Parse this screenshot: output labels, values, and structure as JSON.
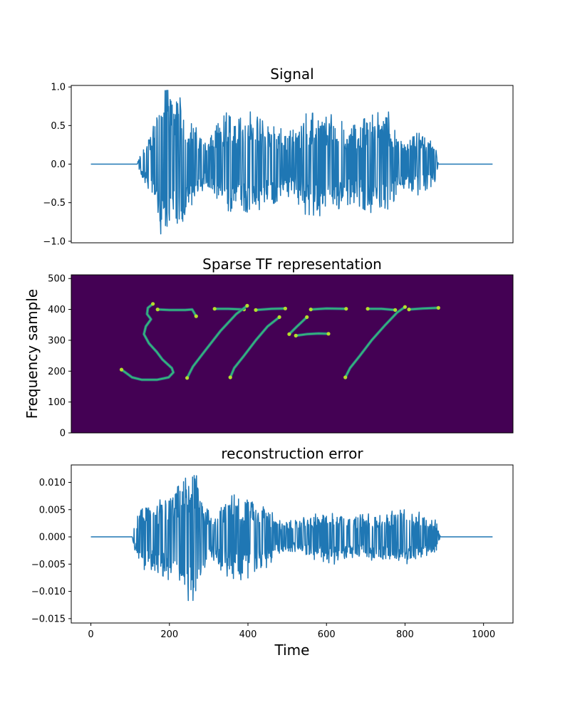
{
  "chart_data": [
    {
      "type": "line",
      "title": "Signal",
      "xlabel": "",
      "ylabel": "",
      "xlim": [
        -50,
        1075
      ],
      "ylim": [
        -1.02,
        1.02
      ],
      "yticks": [
        -1.0,
        -0.5,
        0.0,
        0.5,
        1.0
      ],
      "ytick_labels": [
        "−1.0",
        "−0.5",
        "0.0",
        "0.5",
        "1.0"
      ],
      "xticks_visible": false,
      "line_color": "#1f77b4",
      "envelope": [
        {
          "x": 0,
          "amp": 0.0
        },
        {
          "x": 118,
          "amp": 0.0
        },
        {
          "x": 125,
          "amp": 0.12
        },
        {
          "x": 140,
          "amp": 0.3
        },
        {
          "x": 160,
          "amp": 0.5
        },
        {
          "x": 180,
          "amp": 0.95
        },
        {
          "x": 205,
          "amp": 0.96
        },
        {
          "x": 240,
          "amp": 0.8
        },
        {
          "x": 270,
          "amp": 0.45
        },
        {
          "x": 290,
          "amp": 0.3
        },
        {
          "x": 320,
          "amp": 0.5
        },
        {
          "x": 355,
          "amp": 0.73
        },
        {
          "x": 400,
          "amp": 0.7
        },
        {
          "x": 440,
          "amp": 0.55
        },
        {
          "x": 470,
          "amp": 0.6
        },
        {
          "x": 490,
          "amp": 0.4
        },
        {
          "x": 520,
          "amp": 0.45
        },
        {
          "x": 545,
          "amp": 0.65
        },
        {
          "x": 600,
          "amp": 0.68
        },
        {
          "x": 640,
          "amp": 0.55
        },
        {
          "x": 670,
          "amp": 0.5
        },
        {
          "x": 700,
          "amp": 0.6
        },
        {
          "x": 755,
          "amp": 0.72
        },
        {
          "x": 780,
          "amp": 0.35
        },
        {
          "x": 810,
          "amp": 0.4
        },
        {
          "x": 850,
          "amp": 0.4
        },
        {
          "x": 880,
          "amp": 0.2
        },
        {
          "x": 885,
          "amp": 0.0
        },
        {
          "x": 1023,
          "amp": 0.0
        }
      ]
    },
    {
      "type": "heatmap",
      "title": "Sparse TF representation",
      "xlabel": "",
      "ylabel": "Frequency sample",
      "xlim": [
        0,
        1125
      ],
      "ylim": [
        0,
        512
      ],
      "yticks": [
        0,
        100,
        200,
        300,
        400,
        500
      ],
      "ytick_labels": [
        "0",
        "100",
        "200",
        "300",
        "400",
        "500"
      ],
      "xticks_visible": false,
      "background_color": "#440154",
      "text_shown_by_energy": "STFT",
      "strokes": [
        [
          [
            208,
            418
          ],
          [
            195,
            405
          ],
          [
            193,
            385
          ],
          [
            203,
            368
          ],
          [
            190,
            345
          ],
          [
            185,
            320
          ],
          [
            198,
            290
          ],
          [
            218,
            262
          ],
          [
            232,
            238
          ],
          [
            256,
            210
          ],
          [
            260,
            196
          ],
          [
            248,
            180
          ],
          [
            218,
            172
          ],
          [
            180,
            172
          ],
          [
            155,
            180
          ],
          [
            142,
            192
          ],
          [
            128,
            205
          ]
        ],
        [
          [
            220,
            400
          ],
          [
            250,
            398
          ],
          [
            290,
            398
          ],
          [
            308,
            400
          ],
          [
            318,
            378
          ]
        ],
        [
          [
            365,
            402
          ],
          [
            400,
            402
          ],
          [
            440,
            400
          ]
        ],
        [
          [
            448,
            412
          ],
          [
            420,
            385
          ],
          [
            380,
            330
          ],
          [
            340,
            265
          ],
          [
            310,
            215
          ],
          [
            295,
            178
          ]
        ],
        [
          [
            470,
            398
          ],
          [
            510,
            402
          ],
          [
            545,
            403
          ]
        ],
        [
          [
            530,
            375
          ],
          [
            500,
            345
          ],
          [
            470,
            300
          ],
          [
            440,
            250
          ],
          [
            415,
            210
          ],
          [
            405,
            180
          ]
        ],
        [
          [
            610,
            400
          ],
          [
            650,
            403
          ],
          [
            700,
            402
          ]
        ],
        [
          [
            600,
            375
          ],
          [
            575,
            345
          ],
          [
            555,
            320
          ]
        ],
        [
          [
            572,
            315
          ],
          [
            600,
            320
          ],
          [
            630,
            322
          ],
          [
            655,
            321
          ]
        ],
        [
          [
            755,
            402
          ],
          [
            790,
            402
          ],
          [
            825,
            398
          ]
        ],
        [
          [
            850,
            408
          ],
          [
            830,
            390
          ],
          [
            800,
            350
          ],
          [
            765,
            300
          ],
          [
            735,
            250
          ],
          [
            710,
            210
          ],
          [
            698,
            180
          ]
        ],
        [
          [
            860,
            400
          ],
          [
            895,
            403
          ],
          [
            935,
            405
          ]
        ]
      ]
    },
    {
      "type": "line",
      "title": "reconstruction error",
      "xlabel": "Time",
      "ylabel": "",
      "xlim": [
        -50,
        1075
      ],
      "ylim": [
        -0.0158,
        0.0132
      ],
      "xticks": [
        0,
        200,
        400,
        600,
        800,
        1000
      ],
      "xtick_labels": [
        "0",
        "200",
        "400",
        "600",
        "800",
        "1000"
      ],
      "yticks": [
        -0.015,
        -0.01,
        -0.005,
        0.0,
        0.005,
        0.01
      ],
      "ytick_labels": [
        "−0.015",
        "−0.010",
        "−0.005",
        "0.000",
        "0.005",
        "0.010"
      ],
      "line_color": "#1f77b4",
      "envelope": [
        {
          "x": 0,
          "amp": 0.0
        },
        {
          "x": 105,
          "amp": 0.0
        },
        {
          "x": 110,
          "amp": 0.002
        },
        {
          "x": 130,
          "amp": 0.006
        },
        {
          "x": 160,
          "amp": 0.006
        },
        {
          "x": 200,
          "amp": 0.008
        },
        {
          "x": 235,
          "amp": 0.01
        },
        {
          "x": 262,
          "amp": 0.0135
        },
        {
          "x": 285,
          "amp": 0.006
        },
        {
          "x": 310,
          "amp": 0.004
        },
        {
          "x": 340,
          "amp": 0.007
        },
        {
          "x": 375,
          "amp": 0.008
        },
        {
          "x": 430,
          "amp": 0.007
        },
        {
          "x": 480,
          "amp": 0.003
        },
        {
          "x": 520,
          "amp": 0.003
        },
        {
          "x": 560,
          "amp": 0.004
        },
        {
          "x": 620,
          "amp": 0.005
        },
        {
          "x": 680,
          "amp": 0.004
        },
        {
          "x": 740,
          "amp": 0.0045
        },
        {
          "x": 800,
          "amp": 0.005
        },
        {
          "x": 840,
          "amp": 0.0045
        },
        {
          "x": 880,
          "amp": 0.003
        },
        {
          "x": 890,
          "amp": 0.0
        },
        {
          "x": 1023,
          "amp": 0.0
        }
      ]
    }
  ]
}
